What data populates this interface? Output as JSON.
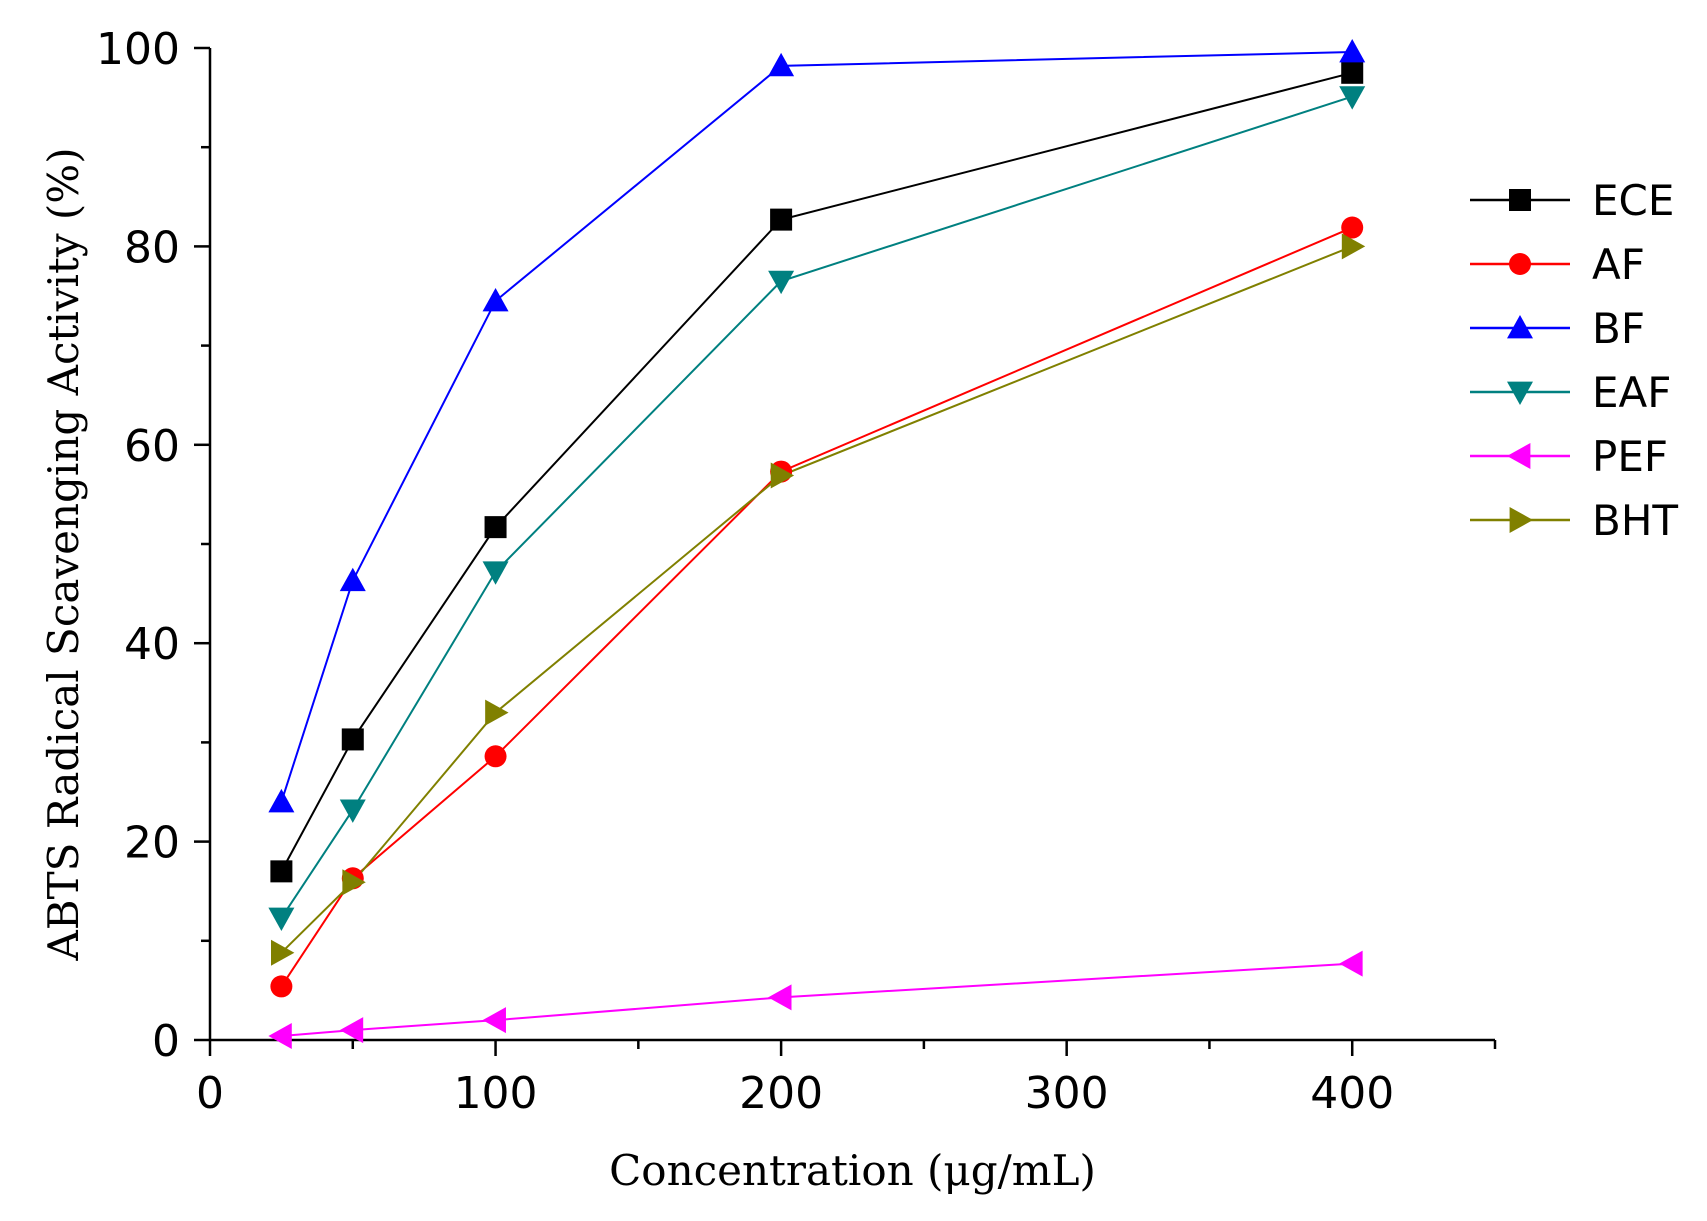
{
  "chart_data": {
    "type": "line",
    "xlabel": "Concentration (μg/mL)",
    "ylabel": "ABTS Radical Scavenging Activity (%)",
    "xlim": [
      0,
      450
    ],
    "ylim": [
      0,
      100
    ],
    "x_ticks": [
      0,
      100,
      200,
      300,
      400
    ],
    "x_minor_ticks": [
      50,
      150,
      250,
      350,
      450
    ],
    "y_ticks": [
      0,
      20,
      40,
      60,
      80,
      100
    ],
    "y_minor_ticks": [
      10,
      30,
      50,
      70,
      90
    ],
    "grid": false,
    "legend_position": "right",
    "x": [
      25,
      50,
      100,
      200,
      400
    ],
    "series": [
      {
        "name": "ECE",
        "color": "#000000",
        "marker": "square",
        "values": [
          17.0,
          30.3,
          51.7,
          82.7,
          97.5
        ]
      },
      {
        "name": "AF",
        "color": "#ff0000",
        "marker": "circle",
        "values": [
          5.4,
          16.3,
          28.6,
          57.3,
          81.9
        ]
      },
      {
        "name": "BF",
        "color": "#0000ff",
        "marker": "triangle-up",
        "values": [
          24.0,
          46.3,
          74.5,
          98.2,
          99.6
        ]
      },
      {
        "name": "EAF",
        "color": "#008080",
        "marker": "triangle-down",
        "values": [
          12.3,
          23.2,
          47.2,
          76.5,
          95.1
        ]
      },
      {
        "name": "PEF",
        "color": "#ff00ff",
        "marker": "triangle-left",
        "values": [
          0.4,
          1.0,
          2.0,
          4.3,
          7.7
        ]
      },
      {
        "name": "BHT",
        "color": "#808000",
        "marker": "triangle-right",
        "values": [
          8.8,
          15.9,
          33.0,
          56.9,
          80.0
        ]
      }
    ]
  }
}
